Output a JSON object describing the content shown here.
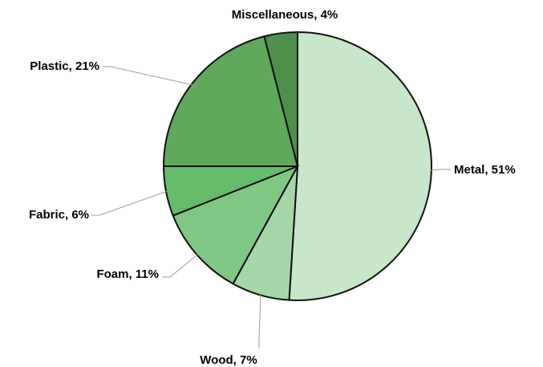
{
  "chart_data": {
    "type": "pie",
    "title": "",
    "slices": [
      {
        "label": "Metal",
        "value": 51,
        "display": "Metal, 51%",
        "color": "#c8e6c9"
      },
      {
        "label": "Wood",
        "value": 7,
        "display": "Wood, 7%",
        "color": "#a5d6a7"
      },
      {
        "label": "Foam",
        "value": 11,
        "display": "Foam, 11%",
        "color": "#81c784"
      },
      {
        "label": "Fabric",
        "value": 6,
        "display": "Fabric, 6%",
        "color": "#66bb6a"
      },
      {
        "label": "Plastic",
        "value": 21,
        "display": "Plastic, 21%",
        "color": "#5fa85c"
      },
      {
        "label": "Miscellaneous",
        "value": 4,
        "display": "Miscellaneous, 4%",
        "color": "#4f8f4c"
      }
    ],
    "start_angle": "12 o'clock",
    "direction": "clockwise",
    "legend": "none"
  }
}
